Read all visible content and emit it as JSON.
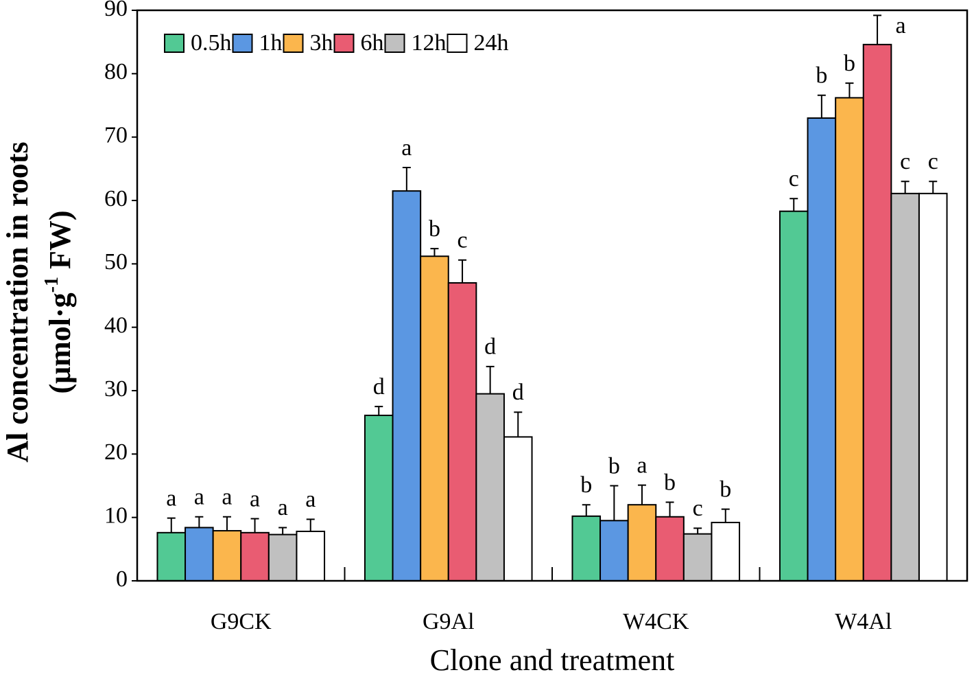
{
  "chart_data": {
    "type": "bar",
    "x_label": "Clone and treatment",
    "y_label": "Al concentration in roots",
    "y_label_unit": {
      "before": "(μmol·g",
      "sup": "-1",
      "after": " FW)"
    },
    "categories": [
      "G9CK",
      "G9Al",
      "W4CK",
      "W4Al"
    ],
    "series": [
      {
        "name": "0.5h",
        "color": "#52c994",
        "values": [
          7.6,
          26.1,
          10.2,
          58.3
        ],
        "errors": [
          2.3,
          1.4,
          1.8,
          2.0
        ],
        "labels": [
          "a",
          "d",
          "b",
          "c"
        ]
      },
      {
        "name": "1h",
        "color": "#5b97e2",
        "values": [
          8.4,
          61.5,
          9.5,
          73.0
        ],
        "errors": [
          1.7,
          3.7,
          5.5,
          3.6
        ],
        "labels": [
          "a",
          "a",
          "b",
          "b"
        ]
      },
      {
        "name": "3h",
        "color": "#fbb64d",
        "values": [
          7.9,
          51.2,
          12.0,
          76.2
        ],
        "errors": [
          2.2,
          1.2,
          3.1,
          2.3
        ],
        "labels": [
          "a",
          "b",
          "a",
          "b"
        ]
      },
      {
        "name": "6h",
        "color": "#e95c72",
        "values": [
          7.6,
          47.0,
          10.1,
          84.6
        ],
        "errors": [
          2.2,
          3.6,
          2.3,
          4.6
        ],
        "labels": [
          "a",
          "c",
          "b",
          "a"
        ]
      },
      {
        "name": "12h",
        "color": "#c0c0c0",
        "values": [
          7.3,
          29.5,
          7.4,
          61.1
        ],
        "errors": [
          1.1,
          4.3,
          0.9,
          1.9
        ],
        "labels": [
          "a",
          "d",
          "c",
          "c"
        ]
      },
      {
        "name": "24h",
        "color": "#ffffff",
        "values": [
          7.8,
          22.7,
          9.2,
          61.1
        ],
        "errors": [
          1.9,
          3.9,
          2.1,
          1.9
        ],
        "labels": [
          "a",
          "d",
          "b",
          "c"
        ]
      }
    ],
    "ylim": [
      0,
      90
    ],
    "yticks": [
      0,
      10,
      20,
      30,
      40,
      50,
      60,
      70,
      80,
      90
    ],
    "legend": "top-left"
  }
}
